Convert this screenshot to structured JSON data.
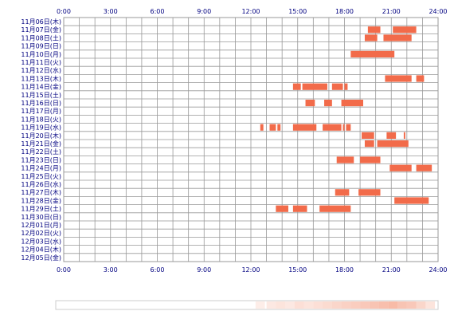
{
  "chart_data": {
    "type": "heatmap",
    "title": "",
    "xlabel": "",
    "ylabel": "",
    "xlim": [
      0,
      24
    ],
    "x_ticks": [
      "0:00",
      "3:00",
      "6:00",
      "9:00",
      "12:00",
      "15:00",
      "18:00",
      "21:00",
      "24:00"
    ],
    "grid": true,
    "colors": {
      "bar": "#f26b4a",
      "grid": "#999999",
      "text": "#000080",
      "heat": "#f5a48a"
    },
    "rows": [
      {
        "label": "11月06日(木)",
        "intervals": []
      },
      {
        "label": "11月07日(金)",
        "intervals": [
          [
            19.5,
            20.3
          ],
          [
            21.1,
            22.6
          ]
        ]
      },
      {
        "label": "11月08日(土)",
        "intervals": [
          [
            19.3,
            20.1
          ],
          [
            20.5,
            22.3
          ]
        ]
      },
      {
        "label": "11月09日(日)",
        "intervals": []
      },
      {
        "label": "11月10日(月)",
        "intervals": [
          [
            18.4,
            21.2
          ]
        ]
      },
      {
        "label": "11月11日(火)",
        "intervals": []
      },
      {
        "label": "11月12日(水)",
        "intervals": []
      },
      {
        "label": "11月13日(木)",
        "intervals": [
          [
            20.6,
            22.3
          ],
          [
            22.6,
            23.1
          ]
        ]
      },
      {
        "label": "11月14日(金)",
        "intervals": [
          [
            14.7,
            15.2
          ],
          [
            15.3,
            16.9
          ],
          [
            17.2,
            17.9
          ],
          [
            18.0,
            18.2
          ]
        ]
      },
      {
        "label": "11月15日(土)",
        "intervals": []
      },
      {
        "label": "11月16日(日)",
        "intervals": [
          [
            15.5,
            16.1
          ],
          [
            16.7,
            17.2
          ],
          [
            17.8,
            19.2
          ]
        ]
      },
      {
        "label": "11月17日(月)",
        "intervals": []
      },
      {
        "label": "11月18日(火)",
        "intervals": []
      },
      {
        "label": "11月19日(水)",
        "intervals": [
          [
            12.6,
            12.8
          ],
          [
            13.2,
            13.6
          ],
          [
            13.7,
            13.9
          ],
          [
            14.7,
            16.2
          ],
          [
            16.6,
            17.8
          ],
          [
            17.9,
            18.0
          ],
          [
            18.1,
            18.4
          ]
        ]
      },
      {
        "label": "11月20日(木)",
        "intervals": [
          [
            19.1,
            19.9
          ],
          [
            20.7,
            21.3
          ],
          [
            21.8,
            21.9
          ]
        ]
      },
      {
        "label": "11月21日(金)",
        "intervals": [
          [
            19.3,
            19.9
          ],
          [
            20.1,
            22.1
          ]
        ]
      },
      {
        "label": "11月22日(土)",
        "intervals": []
      },
      {
        "label": "11月23日(日)",
        "intervals": [
          [
            17.5,
            18.6
          ],
          [
            19.0,
            20.3
          ]
        ]
      },
      {
        "label": "11月24日(月)",
        "intervals": [
          [
            20.9,
            22.3
          ],
          [
            22.6,
            23.6
          ]
        ]
      },
      {
        "label": "11月25日(火)",
        "intervals": []
      },
      {
        "label": "11月26日(水)",
        "intervals": []
      },
      {
        "label": "11月27日(木)",
        "intervals": [
          [
            17.4,
            18.3
          ],
          [
            18.9,
            20.3
          ]
        ]
      },
      {
        "label": "11月28日(金)",
        "intervals": [
          [
            21.2,
            23.4
          ]
        ]
      },
      {
        "label": "11月29日(土)",
        "intervals": [
          [
            13.6,
            14.4
          ],
          [
            14.7,
            15.6
          ],
          [
            16.4,
            18.4
          ]
        ]
      },
      {
        "label": "11月30日(日)",
        "intervals": []
      },
      {
        "label": "12月01日(月)",
        "intervals": []
      },
      {
        "label": "12月02日(火)",
        "intervals": []
      },
      {
        "label": "12月03日(水)",
        "intervals": []
      },
      {
        "label": "12月04日(木)",
        "intervals": []
      },
      {
        "label": "12月05日(金)",
        "intervals": []
      }
    ],
    "heat_strip": [
      [
        12.3,
        0.2
      ],
      [
        13.0,
        0.25
      ],
      [
        13.6,
        0.3
      ],
      [
        14.2,
        0.25
      ],
      [
        14.8,
        0.35
      ],
      [
        15.4,
        0.3
      ],
      [
        16.0,
        0.35
      ],
      [
        16.6,
        0.4
      ],
      [
        17.2,
        0.45
      ],
      [
        17.8,
        0.5
      ],
      [
        18.4,
        0.55
      ],
      [
        19.0,
        0.6
      ],
      [
        19.6,
        0.65
      ],
      [
        20.2,
        0.7
      ],
      [
        20.8,
        0.75
      ],
      [
        21.4,
        0.65
      ],
      [
        22.0,
        0.6
      ],
      [
        22.6,
        0.45
      ],
      [
        23.2,
        0.3
      ]
    ]
  }
}
